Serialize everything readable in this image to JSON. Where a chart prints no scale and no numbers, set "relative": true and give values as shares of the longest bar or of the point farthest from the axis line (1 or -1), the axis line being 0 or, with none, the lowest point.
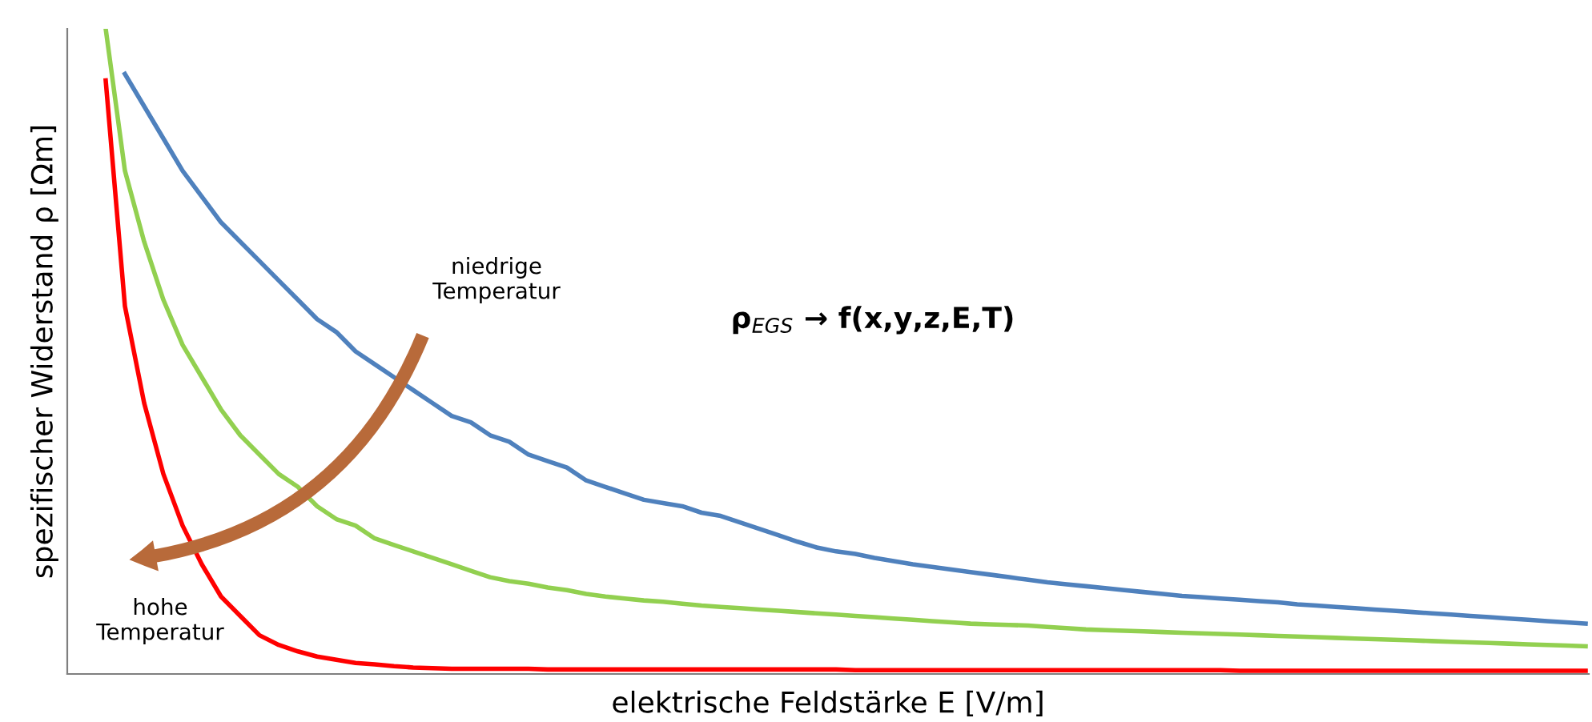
{
  "chart_data": {
    "type": "line",
    "relative": true,
    "xlabel": "elektrische Feldstärke E [V/m]",
    "ylabel": "spezifischer Widerstand ρ [Ωm]",
    "annotations": [
      "niedrige\nTemperatur",
      "hohe\nTemperatur",
      "ρ$_{EGS}$ → f(x,y,z,E,T)"
    ],
    "grid": false,
    "marker": "none",
    "line_style": "solid",
    "categories": [
      null,
      null,
      null,
      null,
      null,
      null,
      null,
      null,
      null,
      null,
      null,
      null,
      null,
      null,
      null,
      null,
      null,
      null,
      null,
      null,
      null,
      null,
      null,
      null,
      null,
      null,
      null,
      null,
      null,
      null,
      null,
      null,
      null,
      null,
      null,
      null,
      null,
      null,
      null,
      null,
      null,
      null,
      null,
      null,
      null,
      null,
      null,
      null,
      null,
      null,
      null,
      null,
      null,
      null,
      null,
      null,
      null,
      null,
      null,
      null,
      null,
      null,
      null,
      null,
      null,
      null,
      null,
      null,
      null,
      null,
      null,
      null,
      null,
      null,
      null,
      null,
      null,
      null,
      null,
      null
    ],
    "series": [
      {
        "color": "#4f81bd",
        "values": [
          null,
          null,
          null,
          0.93,
          0.88,
          0.83,
          0.78,
          0.74,
          0.7,
          0.67,
          0.64,
          0.61,
          0.58,
          0.55,
          0.53,
          0.5,
          0.48,
          0.46,
          0.44,
          0.42,
          0.4,
          0.39,
          0.37,
          0.36,
          0.34,
          0.33,
          0.32,
          0.3,
          0.29,
          0.28,
          0.27,
          0.265,
          0.26,
          0.25,
          0.245,
          0.235,
          0.225,
          0.215,
          0.205,
          0.196,
          0.19,
          0.186,
          0.18,
          0.175,
          0.17,
          0.166,
          0.162,
          0.158,
          0.154,
          0.15,
          0.146,
          0.142,
          0.139,
          0.136,
          0.133,
          0.13,
          0.127,
          0.124,
          0.121,
          0.119,
          0.117,
          0.115,
          0.113,
          0.111,
          0.108,
          0.106,
          0.104,
          0.102,
          0.1,
          0.098,
          0.096,
          0.094,
          0.092,
          0.09,
          0.088,
          0.086,
          0.084,
          0.082,
          0.08,
          0.078
        ]
      },
      {
        "color": "#92d050",
        "values": [
          null,
          null,
          1.0,
          0.78,
          0.67,
          0.58,
          0.51,
          0.46,
          0.41,
          0.37,
          0.34,
          0.31,
          0.29,
          0.26,
          0.24,
          0.23,
          0.21,
          0.2,
          0.19,
          0.18,
          0.17,
          0.16,
          0.15,
          0.144,
          0.14,
          0.134,
          0.13,
          0.124,
          0.12,
          0.117,
          0.114,
          0.112,
          0.109,
          0.106,
          0.104,
          0.102,
          0.1,
          0.098,
          0.096,
          0.094,
          0.092,
          0.09,
          0.088,
          0.086,
          0.084,
          0.082,
          0.08,
          0.078,
          0.077,
          0.076,
          0.075,
          0.073,
          0.071,
          0.069,
          0.068,
          0.067,
          0.066,
          0.065,
          0.064,
          0.063,
          0.062,
          0.061,
          0.06,
          0.059,
          0.058,
          0.057,
          0.056,
          0.055,
          0.054,
          0.053,
          0.052,
          0.051,
          0.05,
          0.049,
          0.048,
          0.047,
          0.046,
          0.045,
          0.044,
          0.043
        ]
      },
      {
        "color": "#ff0000",
        "values": [
          null,
          null,
          0.92,
          0.57,
          0.42,
          0.31,
          0.23,
          0.17,
          0.12,
          0.09,
          0.06,
          0.045,
          0.035,
          0.027,
          0.022,
          0.017,
          0.015,
          0.012,
          0.01,
          0.009,
          0.008,
          0.008,
          0.008,
          0.008,
          0.008,
          0.007,
          0.007,
          0.007,
          0.007,
          0.007,
          0.007,
          0.007,
          0.007,
          0.007,
          0.007,
          0.007,
          0.007,
          0.007,
          0.007,
          0.007,
          0.007,
          0.006,
          0.006,
          0.006,
          0.006,
          0.006,
          0.006,
          0.006,
          0.006,
          0.006,
          0.006,
          0.006,
          0.006,
          0.006,
          0.006,
          0.006,
          0.006,
          0.006,
          0.006,
          0.006,
          0.006,
          0.005,
          0.005,
          0.005,
          0.005,
          0.005,
          0.005,
          0.005,
          0.005,
          0.005,
          0.005,
          0.005,
          0.005,
          0.005,
          0.005,
          0.005,
          0.005,
          0.005,
          0.005,
          0.005
        ]
      }
    ]
  }
}
